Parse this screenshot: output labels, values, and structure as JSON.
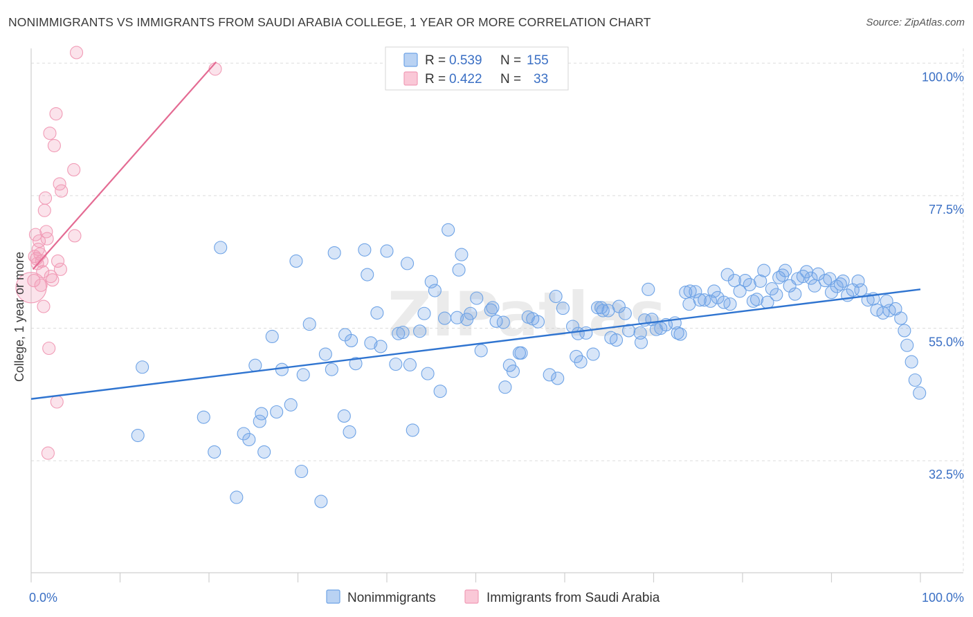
{
  "title": "NONIMMIGRANTS VS IMMIGRANTS FROM SAUDI ARABIA COLLEGE, 1 YEAR OR MORE CORRELATION CHART",
  "source": "Source: ZipAtlas.com",
  "watermark": "ZIPatlas",
  "colors": {
    "blue": "#6ea3e6",
    "blue_line": "#2f74d0",
    "pink": "#f19bb6",
    "pink_line": "#e46b93",
    "tick": "#3a6fc4",
    "grid": "#dcdcdc"
  },
  "chart_data": {
    "type": "scatter",
    "ylabel": "College, 1 year or more",
    "x_tick_labels": [
      "0.0%",
      "100.0%"
    ],
    "y_tick_labels": [
      "100.0%",
      "77.5%",
      "55.0%",
      "32.5%"
    ],
    "y_ticks": [
      100.0,
      77.5,
      55.0,
      32.5
    ],
    "xlim": [
      0,
      100
    ],
    "ylim": [
      13.5,
      102.5
    ],
    "grid": true,
    "legend_placement": "top-center",
    "legend": [
      {
        "name": "Nonimmigrants",
        "r_label": "R =",
        "r": "0.539",
        "n_label": "N =",
        "n": "155"
      },
      {
        "name": "Immigrants from Saudi Arabia",
        "r_label": "R =",
        "r": "0.422",
        "n_label": "N =",
        "n": "33"
      }
    ],
    "series": [
      {
        "name": "Nonimmigrants",
        "color": "#6ea3e6",
        "trend": {
          "x": [
            0,
            100
          ],
          "y": [
            43.0,
            61.6
          ]
        },
        "points": [
          [
            12,
            36.8
          ],
          [
            12.5,
            48.4
          ],
          [
            19.4,
            39.9
          ],
          [
            20.6,
            34.0
          ],
          [
            21.3,
            68.7
          ],
          [
            23.1,
            26.3
          ],
          [
            23.9,
            37.1
          ],
          [
            24.5,
            36.1
          ],
          [
            25.2,
            48.7
          ],
          [
            25.7,
            39.2
          ],
          [
            25.9,
            40.5
          ],
          [
            26.2,
            34.0
          ],
          [
            27.6,
            40.8
          ],
          [
            27.1,
            53.6
          ],
          [
            28.2,
            48.0
          ],
          [
            29.2,
            42.0
          ],
          [
            29.8,
            66.4
          ],
          [
            30.4,
            30.7
          ],
          [
            30.6,
            47.1
          ],
          [
            31.3,
            55.7
          ],
          [
            32.6,
            25.6
          ],
          [
            33.1,
            50.6
          ],
          [
            33.8,
            48.0
          ],
          [
            34.1,
            67.8
          ],
          [
            35.2,
            40.1
          ],
          [
            35.3,
            53.9
          ],
          [
            35.8,
            37.4
          ],
          [
            36.0,
            52.9
          ],
          [
            36.5,
            49.0
          ],
          [
            37.5,
            68.3
          ],
          [
            37.8,
            64.1
          ],
          [
            38.2,
            52.5
          ],
          [
            38.9,
            57.6
          ],
          [
            39.3,
            51.9
          ],
          [
            40.0,
            68.1
          ],
          [
            41.0,
            48.9
          ],
          [
            41.3,
            54.1
          ],
          [
            41.8,
            54.3
          ],
          [
            42.3,
            66.0
          ],
          [
            42.6,
            48.8
          ],
          [
            42.9,
            37.7
          ],
          [
            43.7,
            54.5
          ],
          [
            44.2,
            57.5
          ],
          [
            44.6,
            47.3
          ],
          [
            45.0,
            62.9
          ],
          [
            45.4,
            61.4
          ],
          [
            46.0,
            44.3
          ],
          [
            46.5,
            56.7
          ],
          [
            46.9,
            71.7
          ],
          [
            47.9,
            56.8
          ],
          [
            48.1,
            64.9
          ],
          [
            48.4,
            67.5
          ],
          [
            49.0,
            56.5
          ],
          [
            49.4,
            57.5
          ],
          [
            50.1,
            60.1
          ],
          [
            50.6,
            51.2
          ],
          [
            51.7,
            58.1
          ],
          [
            51.9,
            58.5
          ],
          [
            52.3,
            56.2
          ],
          [
            53.1,
            56.0
          ],
          [
            53.3,
            45.0
          ],
          [
            53.8,
            48.7
          ],
          [
            54.2,
            47.7
          ],
          [
            54.9,
            50.8
          ],
          [
            55.1,
            50.8
          ],
          [
            55.9,
            56.9
          ],
          [
            56.4,
            56.6
          ],
          [
            57.0,
            56.1
          ],
          [
            58.3,
            47.1
          ],
          [
            59.0,
            60.4
          ],
          [
            59.2,
            46.5
          ],
          [
            59.8,
            58.4
          ],
          [
            60.9,
            55.3
          ],
          [
            61.3,
            50.2
          ],
          [
            61.5,
            54.1
          ],
          [
            61.8,
            49.3
          ],
          [
            62.4,
            54.2
          ],
          [
            63.2,
            50.6
          ],
          [
            63.7,
            58.5
          ],
          [
            64.1,
            58.5
          ],
          [
            64.3,
            58.0
          ],
          [
            64.9,
            58.0
          ],
          [
            65.2,
            53.4
          ],
          [
            65.8,
            53.0
          ],
          [
            66.1,
            58.7
          ],
          [
            66.8,
            57.5
          ],
          [
            67.2,
            54.6
          ],
          [
            68.5,
            54.2
          ],
          [
            68.6,
            52.6
          ],
          [
            69.0,
            56.4
          ],
          [
            69.4,
            61.6
          ],
          [
            69.8,
            56.5
          ],
          [
            70.3,
            54.8
          ],
          [
            70.8,
            55.0
          ],
          [
            71.4,
            55.6
          ],
          [
            72.4,
            55.9
          ],
          [
            72.7,
            54.2
          ],
          [
            73.0,
            54.0
          ],
          [
            73.6,
            61.1
          ],
          [
            74.0,
            59.1
          ],
          [
            74.1,
            61.3
          ],
          [
            74.7,
            61.2
          ],
          [
            75.2,
            59.8
          ],
          [
            75.7,
            59.8
          ],
          [
            76.4,
            59.6
          ],
          [
            76.8,
            61.3
          ],
          [
            77.2,
            60.2
          ],
          [
            77.9,
            59.4
          ],
          [
            78.3,
            64.1
          ],
          [
            78.6,
            59.1
          ],
          [
            79.1,
            63.1
          ],
          [
            79.7,
            61.3
          ],
          [
            80.3,
            63.1
          ],
          [
            80.8,
            62.4
          ],
          [
            81.2,
            59.6
          ],
          [
            81.6,
            59.9
          ],
          [
            82.0,
            63.0
          ],
          [
            82.4,
            64.8
          ],
          [
            82.8,
            59.4
          ],
          [
            83.3,
            61.7
          ],
          [
            83.8,
            60.7
          ],
          [
            84.1,
            63.6
          ],
          [
            84.5,
            64.0
          ],
          [
            84.8,
            64.8
          ],
          [
            85.3,
            62.2
          ],
          [
            85.9,
            60.8
          ],
          [
            86.2,
            63.4
          ],
          [
            86.8,
            63.8
          ],
          [
            87.2,
            64.6
          ],
          [
            87.7,
            63.5
          ],
          [
            88.1,
            62.2
          ],
          [
            88.5,
            64.2
          ],
          [
            89.3,
            63.1
          ],
          [
            89.8,
            63.4
          ],
          [
            90.0,
            61.1
          ],
          [
            90.6,
            62.1
          ],
          [
            91.0,
            62.5
          ],
          [
            91.3,
            63.0
          ],
          [
            91.8,
            60.6
          ],
          [
            92.4,
            61.5
          ],
          [
            93.0,
            63.0
          ],
          [
            93.3,
            61.5
          ],
          [
            94.1,
            59.8
          ],
          [
            94.7,
            60.0
          ],
          [
            95.1,
            58.1
          ],
          [
            95.8,
            57.6
          ],
          [
            96.2,
            59.6
          ],
          [
            96.5,
            58.0
          ],
          [
            97.2,
            58.3
          ],
          [
            97.8,
            56.7
          ],
          [
            98.2,
            54.6
          ],
          [
            98.5,
            52.1
          ],
          [
            99.0,
            49.3
          ],
          [
            99.4,
            46.2
          ],
          [
            99.9,
            44.0
          ]
        ]
      },
      {
        "name": "Immigrants from Saudi Arabia",
        "color": "#f19bb6",
        "trend": {
          "x": [
            0.2,
            20.8
          ],
          "y": [
            65.0,
            100.2
          ]
        },
        "points": [
          [
            0.3,
            63.1
          ],
          [
            0.4,
            67.2
          ],
          [
            0.5,
            70.9
          ],
          [
            0.6,
            66.8
          ],
          [
            0.7,
            66.0
          ],
          [
            0.8,
            68.4
          ],
          [
            0.9,
            69.8
          ],
          [
            1.0,
            67.6
          ],
          [
            1.1,
            62.3
          ],
          [
            1.2,
            66.4
          ],
          [
            1.3,
            64.6
          ],
          [
            1.4,
            58.7
          ],
          [
            1.5,
            75.0
          ],
          [
            1.6,
            77.1
          ],
          [
            1.7,
            71.4
          ],
          [
            1.8,
            70.2
          ],
          [
            1.9,
            33.8
          ],
          [
            2.0,
            51.6
          ],
          [
            2.1,
            88.1
          ],
          [
            2.2,
            63.8
          ],
          [
            2.4,
            63.2
          ],
          [
            2.6,
            86.0
          ],
          [
            2.8,
            91.4
          ],
          [
            2.9,
            42.5
          ],
          [
            3.0,
            66.4
          ],
          [
            3.2,
            79.5
          ],
          [
            3.3,
            65.0
          ],
          [
            3.4,
            78.3
          ],
          [
            4.8,
            81.9
          ],
          [
            4.9,
            70.7
          ],
          [
            5.1,
            101.8
          ],
          [
            20.7,
            99.0
          ],
          [
            0.0,
            61.9
          ]
        ]
      }
    ]
  }
}
